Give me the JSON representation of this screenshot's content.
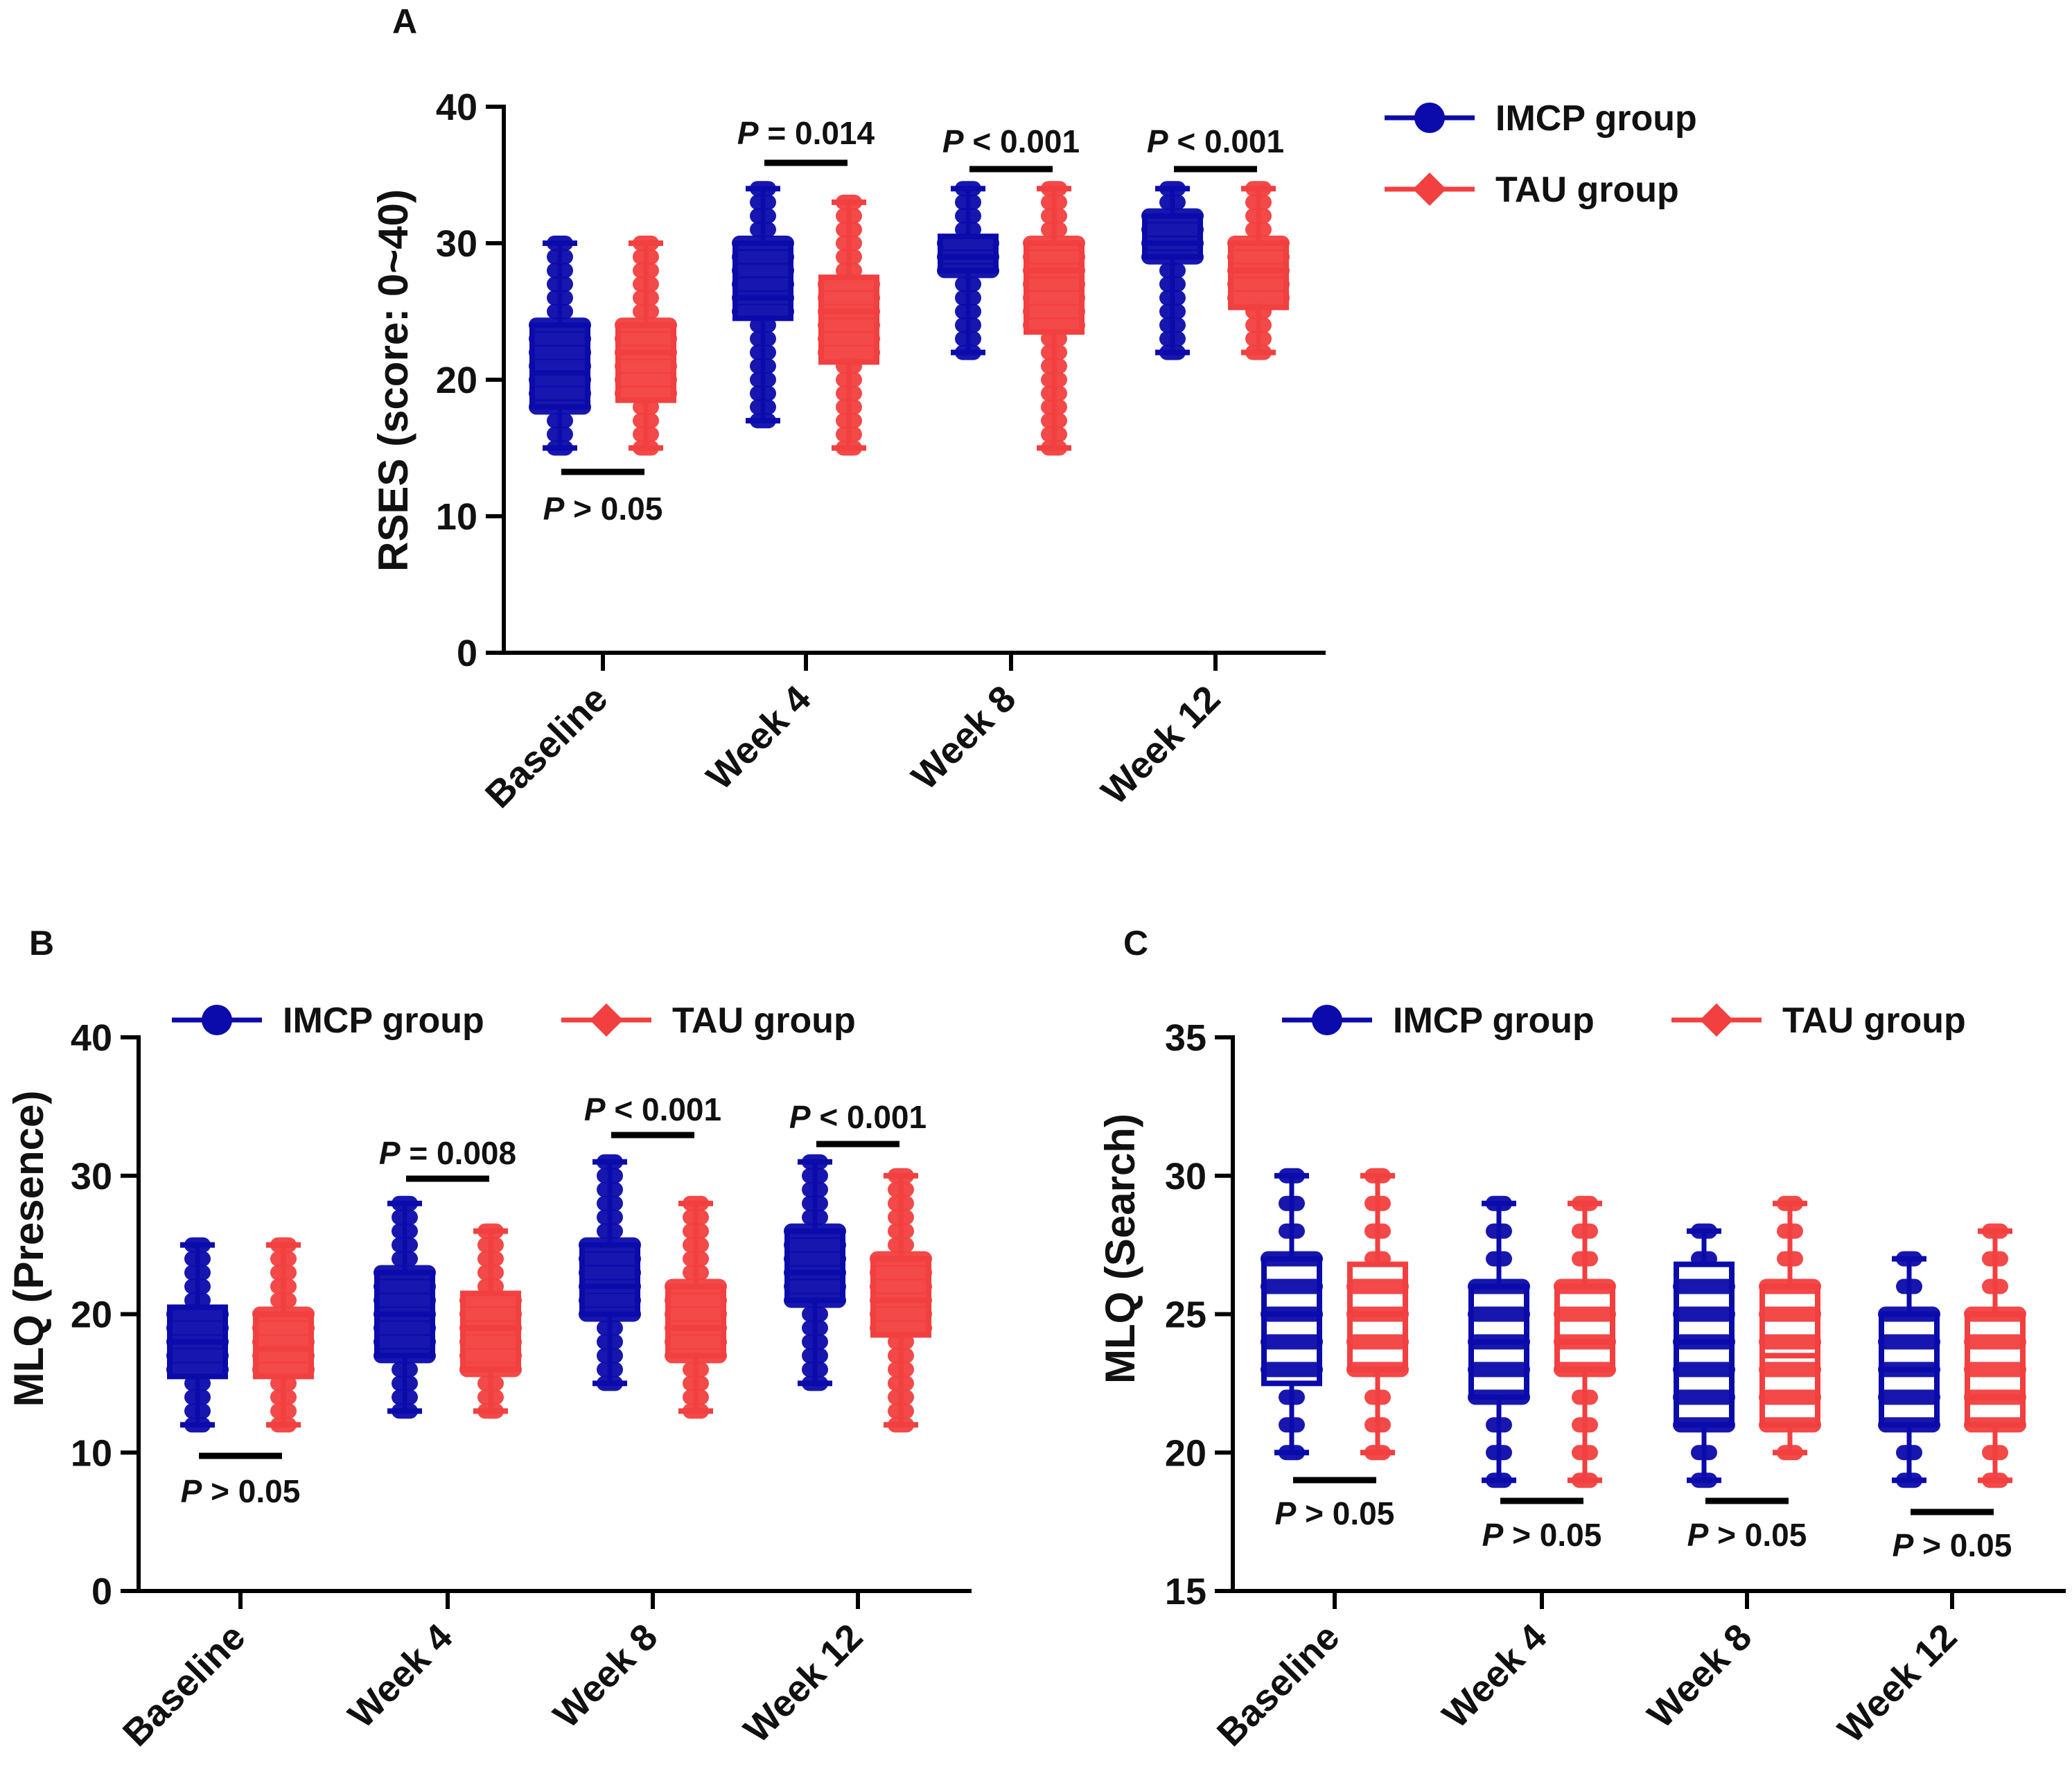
{
  "colors": {
    "imcp": "#0b0bab",
    "tau": "#f23f3f",
    "axis": "#000000"
  },
  "legend": {
    "imcp": "IMCP group",
    "tau": "TAU group"
  },
  "chart_data": [
    {
      "panel": "A",
      "type": "box",
      "ylabel": "RSES (score: 0~40)",
      "ylim": [
        0,
        40
      ],
      "yticks": [
        "0",
        "10",
        "20",
        "30",
        "40"
      ],
      "categories": [
        "Baseline",
        "Week 4",
        "Week 8",
        "Week 12"
      ],
      "legend_position": "top-right",
      "series": [
        {
          "name": "IMCP group",
          "boxes": [
            {
              "min": 15,
              "q1": 18,
              "median": 20.5,
              "q3": 24,
              "max": 30
            },
            {
              "min": 17,
              "q1": 24.5,
              "median": 26,
              "q3": 30,
              "max": 34
            },
            {
              "min": 22,
              "q1": 28,
              "median": 29,
              "q3": 30.5,
              "max": 34
            },
            {
              "min": 22,
              "q1": 29,
              "median": 30,
              "q3": 32,
              "max": 34
            }
          ]
        },
        {
          "name": "TAU group",
          "boxes": [
            {
              "min": 15,
              "q1": 18.5,
              "median": 22,
              "q3": 24,
              "max": 30
            },
            {
              "min": 15,
              "q1": 21.3,
              "median": 25,
              "q3": 27.5,
              "max": 33
            },
            {
              "min": 15,
              "q1": 23.5,
              "median": 28,
              "q3": 30,
              "max": 34
            },
            {
              "min": 22,
              "q1": 25.3,
              "median": 28,
              "q3": 30,
              "max": 34
            }
          ]
        }
      ],
      "p_values": [
        {
          "text": "P > 0.05",
          "p": "P",
          "rest": " > 0.05"
        },
        {
          "text": "P = 0.014",
          "p": "P",
          "rest": " = 0.014"
        },
        {
          "text": "P < 0.001",
          "p": "P",
          "rest": " < 0.001"
        },
        {
          "text": "P < 0.001",
          "p": "P",
          "rest": " < 0.001"
        }
      ]
    },
    {
      "panel": "B",
      "type": "box",
      "ylabel": "MLQ (Presence)",
      "ylim": [
        0,
        40
      ],
      "yticks": [
        "0",
        "10",
        "20",
        "30",
        "40"
      ],
      "categories": [
        "Baseline",
        "Week 4",
        "Week 8",
        "Week 12"
      ],
      "legend_position": "top",
      "series": [
        {
          "name": "IMCP group",
          "boxes": [
            {
              "min": 12,
              "q1": 15.5,
              "median": 18,
              "q3": 20.5,
              "max": 25
            },
            {
              "min": 13,
              "q1": 17,
              "median": 20,
              "q3": 23,
              "max": 28
            },
            {
              "min": 15,
              "q1": 20,
              "median": 22,
              "q3": 25,
              "max": 31
            },
            {
              "min": 15,
              "q1": 21,
              "median": 23,
              "q3": 26,
              "max": 31
            }
          ]
        },
        {
          "name": "TAU group",
          "boxes": [
            {
              "min": 12,
              "q1": 15.5,
              "median": 17.5,
              "q3": 20,
              "max": 25
            },
            {
              "min": 13,
              "q1": 16,
              "median": 19,
              "q3": 21.5,
              "max": 26
            },
            {
              "min": 13,
              "q1": 17,
              "median": 19,
              "q3": 22,
              "max": 28
            },
            {
              "min": 12,
              "q1": 18.5,
              "median": 21,
              "q3": 24,
              "max": 30
            }
          ]
        }
      ],
      "p_values": [
        {
          "text": "P > 0.05",
          "p": "P",
          "rest": " > 0.05"
        },
        {
          "text": "P = 0.008",
          "p": "P",
          "rest": " = 0.008"
        },
        {
          "text": "P < 0.001",
          "p": "P",
          "rest": " < 0.001"
        },
        {
          "text": "P < 0.001",
          "p": "P",
          "rest": " < 0.001"
        }
      ]
    },
    {
      "panel": "C",
      "type": "box",
      "ylabel": "MLQ (Search)",
      "ylim": [
        15,
        35
      ],
      "yticks": [
        "15",
        "20",
        "25",
        "30",
        "35"
      ],
      "categories": [
        "Baseline",
        "Week 4",
        "Week 8",
        "Week 12"
      ],
      "legend_position": "top",
      "series": [
        {
          "name": "IMCP group",
          "boxes": [
            {
              "min": 20,
              "q1": 22.5,
              "median": 25,
              "q3": 27,
              "max": 30
            },
            {
              "min": 19,
              "q1": 22,
              "median": 24,
              "q3": 26,
              "max": 29
            },
            {
              "min": 19,
              "q1": 21,
              "median": 24,
              "q3": 26.8,
              "max": 28
            },
            {
              "min": 19,
              "q1": 21,
              "median": 23,
              "q3": 25,
              "max": 27
            }
          ]
        },
        {
          "name": "TAU group",
          "boxes": [
            {
              "min": 20,
              "q1": 23,
              "median": 25,
              "q3": 26.8,
              "max": 30
            },
            {
              "min": 19,
              "q1": 23,
              "median": 24,
              "q3": 26,
              "max": 29
            },
            {
              "min": 20,
              "q1": 21,
              "median": 23.5,
              "q3": 26,
              "max": 29
            },
            {
              "min": 19,
              "q1": 21,
              "median": 22,
              "q3": 25,
              "max": 28
            }
          ]
        }
      ],
      "p_values": [
        {
          "text": "P > 0.05",
          "p": "P",
          "rest": " > 0.05"
        },
        {
          "text": "P > 0.05",
          "p": "P",
          "rest": " > 0.05"
        },
        {
          "text": "P > 0.05",
          "p": "P",
          "rest": " > 0.05"
        },
        {
          "text": "P > 0.05",
          "p": "P",
          "rest": " > 0.05"
        }
      ]
    }
  ]
}
